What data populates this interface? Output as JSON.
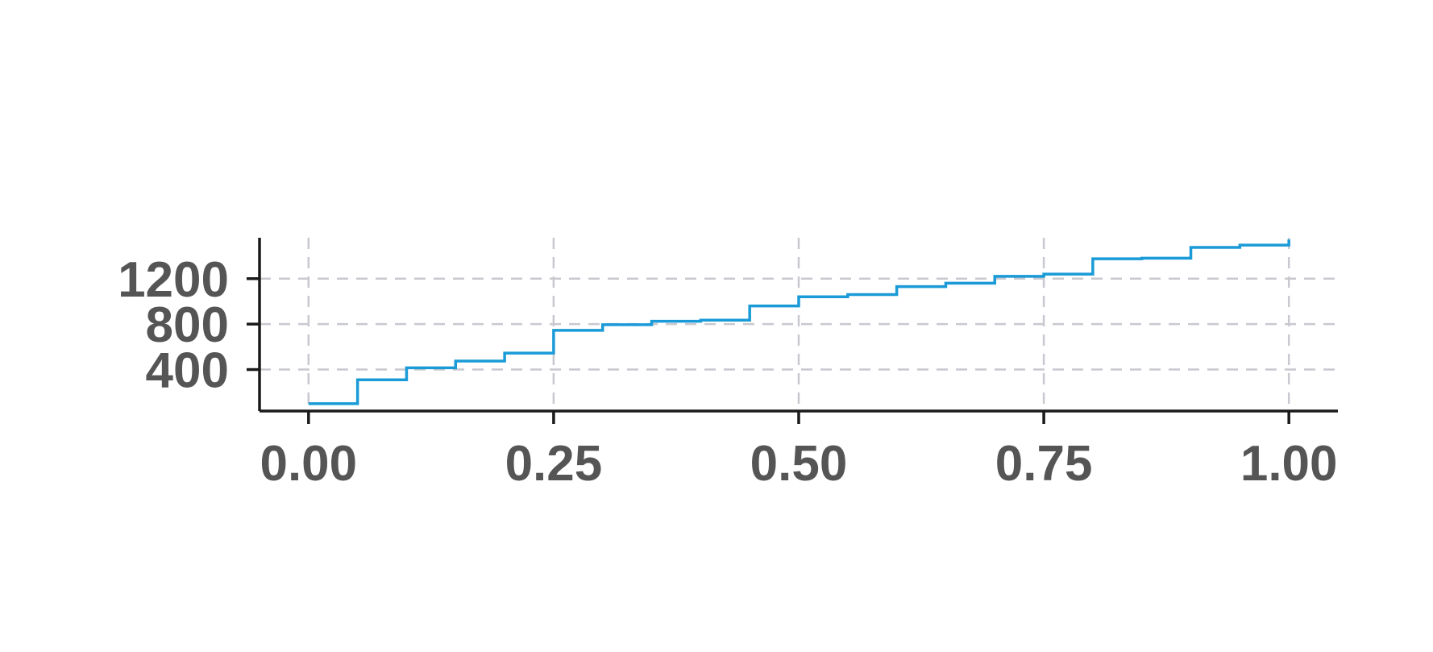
{
  "chart_data": {
    "type": "line",
    "step": "post",
    "title": "",
    "xlabel": "",
    "ylabel": "",
    "x_ticks": [
      0.0,
      0.25,
      0.5,
      0.75,
      1.0
    ],
    "x_tick_labels": [
      "0.00",
      "0.25",
      "0.50",
      "0.75",
      "1.00"
    ],
    "y_ticks": [
      400,
      800,
      1200
    ],
    "y_tick_labels": [
      "400",
      "800",
      "1200"
    ],
    "xlim": [
      -0.05,
      1.05
    ],
    "ylim": [
      35,
      1560
    ],
    "grid": true,
    "legend": "none",
    "color": "#1a9bd7",
    "series": [
      {
        "x": [
          0.0,
          0.05,
          0.1,
          0.15,
          0.2,
          0.25,
          0.3,
          0.35,
          0.4,
          0.45,
          0.5,
          0.55,
          0.6,
          0.65,
          0.7,
          0.75,
          0.8,
          0.85,
          0.9,
          0.95,
          1.0
        ],
        "y": [
          100,
          310,
          415,
          475,
          545,
          745,
          795,
          825,
          835,
          960,
          1040,
          1060,
          1130,
          1160,
          1220,
          1240,
          1375,
          1380,
          1475,
          1495,
          1545
        ]
      }
    ]
  }
}
